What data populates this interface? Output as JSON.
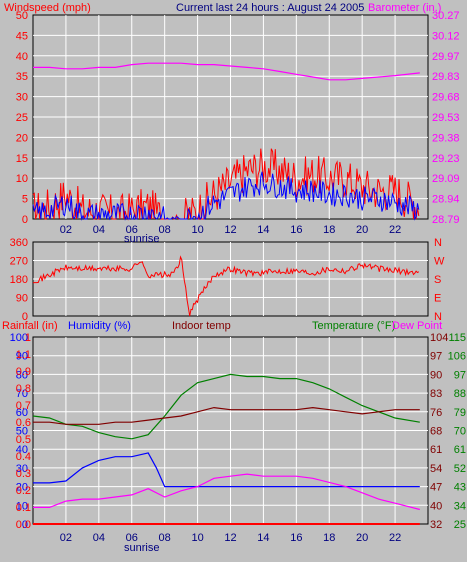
{
  "header": {
    "wind_title": "Windspeed (mph)",
    "center_title": "Current last 24 hours : August 24 2005",
    "baro_title": "Barometer (in.)"
  },
  "colors": {
    "background": "#c0c0c0",
    "grid": "#ffffff",
    "wind": "#ff0000",
    "gust": "#0000ff",
    "barometer": "#ff00ff",
    "direction": "#ff0000",
    "rain": "#ff0000",
    "humidity": "#0000ff",
    "indoor": "#800000",
    "temperature": "#008000",
    "dewpoint": "#ff00ff",
    "tick_text": "#000080"
  },
  "x_axis": {
    "ticks": [
      "02",
      "04",
      "06",
      "08",
      "10",
      "12",
      "14",
      "16",
      "18",
      "20",
      "22"
    ],
    "sunrise_label": "sunrise"
  },
  "panel1": {
    "left_ticks": [
      "50",
      "45",
      "40",
      "35",
      "30",
      "25",
      "20",
      "15",
      "10",
      "5",
      "0"
    ],
    "right_ticks": [
      "30.27",
      "30.12",
      "29.97",
      "29.83",
      "29.68",
      "29.53",
      "29.38",
      "29.23",
      "29.09",
      "28.94",
      "28.79"
    ]
  },
  "panel2": {
    "left_ticks": [
      "360",
      "270",
      "180",
      "90",
      "0"
    ],
    "right_ticks": [
      "N",
      "W",
      "S",
      "E",
      "N"
    ]
  },
  "panel3": {
    "rain_label": "Rainfall (in)",
    "humidity_label": "Humidity (%)",
    "indoor_label": "Indoor temp",
    "temp_label": "Temperature (°F)",
    "dew_label": "Dew Point",
    "humidity_ticks": [
      "100",
      "90",
      "80",
      "70",
      "60",
      "50",
      "40",
      "30",
      "20",
      "10",
      "0"
    ],
    "rain_ticks": [
      "1",
      "1.1",
      "0.9",
      "0.8",
      "0.7",
      "0.6",
      "0.5",
      "0.4",
      "0.3",
      "0.2",
      "0.1",
      "0.0"
    ],
    "right_inner_ticks": [
      "104",
      "97",
      "90",
      "83",
      "76",
      "68",
      "61",
      "54",
      "47",
      "40",
      "32"
    ],
    "right_outer_ticks": [
      "115",
      "106",
      "97",
      "88",
      "79",
      "70",
      "61",
      "52",
      "43",
      "34",
      "25"
    ]
  },
  "chart_data": [
    {
      "type": "line",
      "title": "Windspeed (mph) / Barometer (in.)",
      "xlabel": "",
      "x_range_hours": [
        0,
        24
      ],
      "ylim_left": [
        0,
        50
      ],
      "ylim_right": [
        28.79,
        30.27
      ],
      "series": [
        {
          "name": "Barometer (in.)",
          "axis": "right",
          "x": [
            0,
            1,
            2,
            3,
            4,
            5,
            6,
            7,
            8,
            9,
            10,
            11,
            12,
            13,
            14,
            15,
            16,
            17,
            18,
            19,
            20,
            21,
            22,
            23.5
          ],
          "values": [
            29.89,
            29.89,
            29.88,
            29.88,
            29.89,
            29.89,
            29.91,
            29.92,
            29.92,
            29.92,
            29.91,
            29.91,
            29.9,
            29.89,
            29.88,
            29.86,
            29.84,
            29.82,
            29.8,
            29.8,
            29.81,
            29.82,
            29.83,
            29.85
          ]
        },
        {
          "name": "Windspeed (mph)",
          "axis": "left",
          "x": [
            0,
            1,
            2,
            3,
            4,
            5,
            6,
            7,
            8,
            9,
            10,
            11,
            12,
            13,
            14,
            15,
            16,
            17,
            18,
            19,
            20,
            21,
            22,
            23.5
          ],
          "values": [
            2,
            3,
            6,
            2,
            2,
            1,
            2,
            3,
            0,
            0,
            2,
            6,
            9,
            12,
            13,
            12,
            10,
            11,
            10,
            10,
            8,
            7,
            7,
            3
          ]
        },
        {
          "name": "Gust",
          "axis": "left",
          "x": [
            0,
            1,
            2,
            3,
            4,
            5,
            6,
            7,
            8,
            9,
            10,
            11,
            12,
            13,
            14,
            15,
            16,
            17,
            18,
            19,
            20,
            21,
            22,
            23.5
          ],
          "values": [
            1,
            2,
            4,
            1,
            1,
            1,
            1,
            2,
            0,
            0,
            1,
            4,
            6,
            8,
            9,
            8,
            7,
            7,
            6,
            6,
            5,
            5,
            4,
            2
          ]
        }
      ]
    },
    {
      "type": "line",
      "title": "Wind direction",
      "ylim": [
        0,
        360
      ],
      "series": [
        {
          "name": "Direction",
          "x": [
            0,
            0.5,
            1,
            1.5,
            2,
            3,
            4,
            5,
            6,
            6.5,
            7,
            7.5,
            8,
            8.5,
            9,
            9.5,
            10,
            11,
            12,
            13,
            14,
            15,
            16,
            17,
            18,
            19,
            20,
            21,
            22,
            23.5
          ],
          "values": [
            175,
            180,
            200,
            220,
            235,
            230,
            230,
            230,
            230,
            270,
            200,
            200,
            200,
            200,
            280,
            10,
            80,
            200,
            230,
            210,
            210,
            220,
            220,
            210,
            230,
            220,
            250,
            230,
            220,
            210
          ]
        }
      ]
    },
    {
      "type": "line",
      "title": "Humidity / Temperature / Dew Point / Indoor temp / Rainfall",
      "ylim_humidity": [
        0,
        100
      ],
      "ylim_temp": [
        25,
        115
      ],
      "series": [
        {
          "name": "Humidity (%)",
          "axis": "humidity",
          "x": [
            0,
            1,
            2,
            3,
            4,
            5,
            6,
            7,
            7.5,
            8,
            9,
            10,
            11,
            12,
            13,
            14,
            15,
            16,
            17,
            18,
            19,
            20,
            21,
            22,
            23.5
          ],
          "values": [
            22,
            22,
            23,
            30,
            34,
            36,
            36,
            38,
            30,
            20,
            20,
            20,
            20,
            20,
            20,
            20,
            20,
            20,
            20,
            20,
            20,
            20,
            20,
            20,
            20
          ]
        },
        {
          "name": "Temperature (°F)",
          "axis": "temp",
          "x": [
            0,
            1,
            2,
            3,
            4,
            5,
            6,
            7,
            8,
            9,
            10,
            11,
            12,
            13,
            14,
            15,
            16,
            17,
            18,
            19,
            20,
            21,
            22,
            23.5
          ],
          "values": [
            77,
            76,
            73,
            72,
            69,
            67,
            66,
            68,
            77,
            87,
            93,
            95,
            97,
            96,
            96,
            95,
            95,
            93,
            90,
            86,
            82,
            79,
            76,
            74
          ]
        },
        {
          "name": "Dew Point",
          "axis": "temp",
          "x": [
            0,
            1,
            2,
            3,
            4,
            5,
            6,
            7,
            8,
            9,
            10,
            11,
            12,
            13,
            14,
            15,
            16,
            17,
            18,
            19,
            20,
            21,
            22,
            23.5
          ],
          "values": [
            33,
            33,
            36,
            37,
            37,
            38,
            39,
            42,
            38,
            41,
            43,
            47,
            48,
            49,
            48,
            48,
            48,
            47,
            45,
            43,
            40,
            37,
            35,
            32
          ]
        },
        {
          "name": "Indoor temp",
          "axis": "temp",
          "x": [
            0,
            1,
            2,
            3,
            4,
            5,
            6,
            7,
            8,
            9,
            10,
            11,
            12,
            13,
            14,
            15,
            16,
            17,
            18,
            19,
            20,
            21,
            22,
            23.5
          ],
          "values": [
            74,
            74,
            73,
            73,
            73,
            74,
            74,
            75,
            76,
            77,
            79,
            81,
            80,
            80,
            80,
            80,
            80,
            81,
            80,
            79,
            78,
            79,
            80,
            80
          ]
        },
        {
          "name": "Rainfall (in)",
          "axis": "humidity",
          "x": [
            0,
            23.5
          ],
          "values": [
            0,
            0
          ]
        }
      ]
    }
  ]
}
